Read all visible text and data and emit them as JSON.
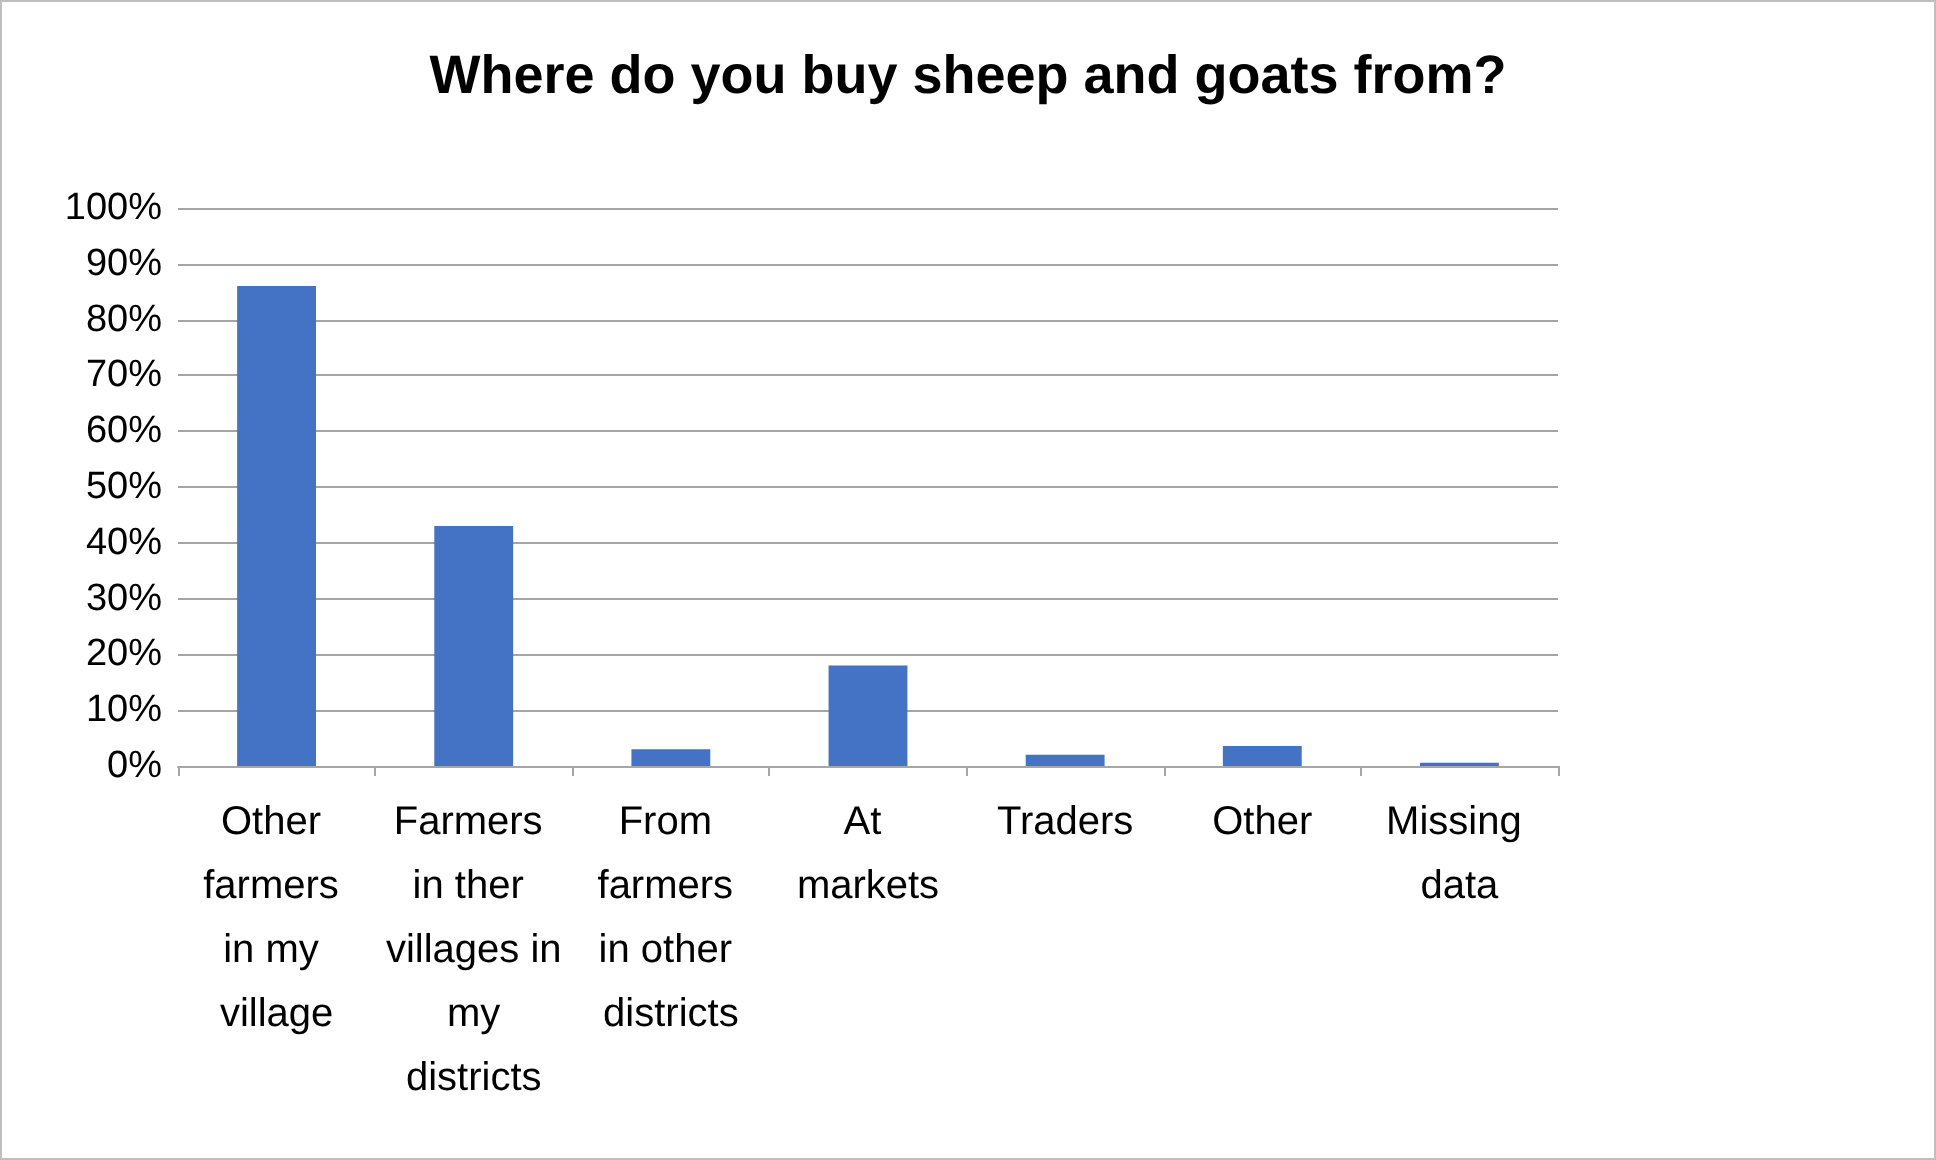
{
  "chart_data": {
    "type": "bar",
    "title": "Where do you buy sheep and goats from?",
    "categories": [
      "Other farmers in my village",
      "Farmers in ther villages in my districts",
      "From farmers in other districts",
      "At markets",
      "Traders",
      "Other",
      "Missing data"
    ],
    "values": [
      86,
      43,
      3,
      18,
      2,
      3.6,
      0.6
    ],
    "color": "#4472c4",
    "ylim": [
      0,
      100
    ],
    "yticks": [
      {
        "value": 0,
        "label": "0%"
      },
      {
        "value": 10,
        "label": "10%"
      },
      {
        "value": 20,
        "label": "20%"
      },
      {
        "value": 30,
        "label": "30%"
      },
      {
        "value": 40,
        "label": "40%"
      },
      {
        "value": 50,
        "label": "50%"
      },
      {
        "value": 60,
        "label": "60%"
      },
      {
        "value": 70,
        "label": "70%"
      },
      {
        "value": 80,
        "label": "80%"
      },
      {
        "value": 90,
        "label": "90%"
      },
      {
        "value": 100,
        "label": "100%"
      }
    ],
    "grid": "y"
  }
}
